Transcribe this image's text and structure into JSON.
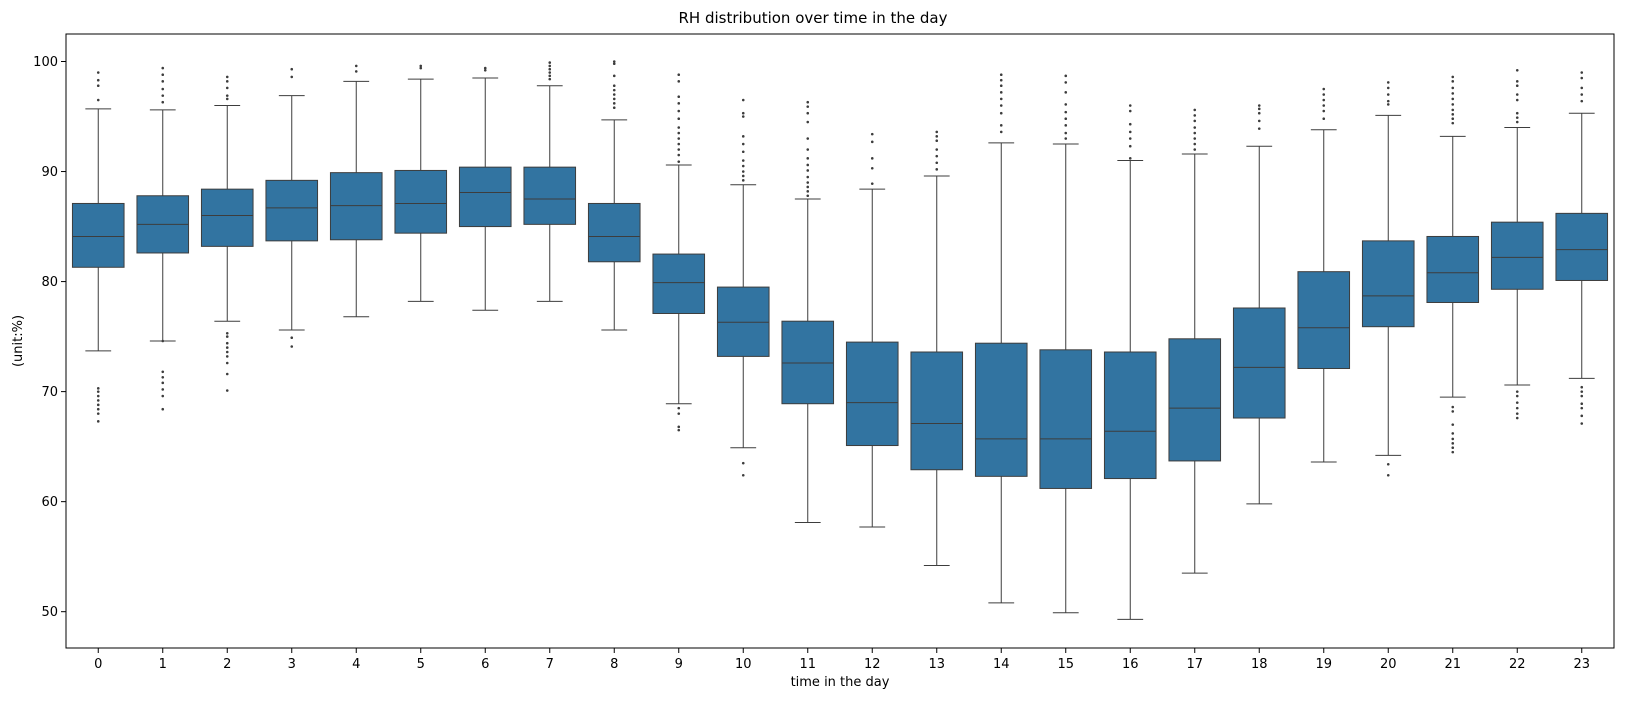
{
  "chart_data": {
    "type": "box",
    "title": "RH distribution over time in the day",
    "xlabel": "time in the day",
    "ylabel": "(unit:%)",
    "ylim": [
      46.7,
      102.5
    ],
    "yticks": [
      50,
      60,
      70,
      80,
      90,
      100
    ],
    "categories": [
      "0",
      "1",
      "2",
      "3",
      "4",
      "5",
      "6",
      "7",
      "8",
      "9",
      "10",
      "11",
      "12",
      "13",
      "14",
      "15",
      "16",
      "17",
      "18",
      "19",
      "20",
      "21",
      "22",
      "23"
    ],
    "box_color": "#3274a1",
    "edge_color": "#3d3d3d",
    "grid": false,
    "legend": "none",
    "boxes": [
      {
        "q1": 81.3,
        "median": 84.1,
        "q3": 87.1,
        "whisker_low": 73.7,
        "whisker_high": 95.7,
        "outliers": [
          67.3,
          68.0,
          68.4,
          68.8,
          69.2,
          69.6,
          70.0,
          70.3,
          96.5,
          97.8,
          98.3,
          99.0
        ]
      },
      {
        "q1": 82.6,
        "median": 85.2,
        "q3": 87.8,
        "whisker_low": 74.6,
        "whisker_high": 95.6,
        "outliers": [
          68.4,
          69.6,
          70.2,
          70.8,
          71.3,
          71.8,
          74.6,
          96.3,
          96.9,
          97.5,
          98.2,
          98.8,
          99.4
        ]
      },
      {
        "q1": 83.2,
        "median": 86.0,
        "q3": 88.4,
        "whisker_low": 76.4,
        "whisker_high": 96.0,
        "outliers": [
          70.1,
          71.6,
          72.6,
          73.2,
          73.6,
          74.0,
          74.4,
          75.0,
          75.3,
          96.6,
          96.9,
          97.6,
          98.2,
          98.6
        ]
      },
      {
        "q1": 83.7,
        "median": 86.7,
        "q3": 89.2,
        "whisker_low": 75.6,
        "whisker_high": 96.9,
        "outliers": [
          74.1,
          74.9,
          98.6,
          99.3
        ]
      },
      {
        "q1": 83.8,
        "median": 86.9,
        "q3": 89.9,
        "whisker_low": 76.8,
        "whisker_high": 98.2,
        "outliers": [
          99.1,
          99.6
        ]
      },
      {
        "q1": 84.4,
        "median": 87.1,
        "q3": 90.1,
        "whisker_low": 78.2,
        "whisker_high": 98.4,
        "outliers": [
          99.4,
          99.6
        ]
      },
      {
        "q1": 85.0,
        "median": 88.1,
        "q3": 90.4,
        "whisker_low": 77.4,
        "whisker_high": 98.5,
        "outliers": [
          99.2,
          99.4
        ]
      },
      {
        "q1": 85.2,
        "median": 87.5,
        "q3": 90.4,
        "whisker_low": 78.2,
        "whisker_high": 97.8,
        "outliers": [
          98.4,
          98.7,
          99.0,
          99.3,
          99.6,
          99.9
        ]
      },
      {
        "q1": 81.8,
        "median": 84.1,
        "q3": 87.1,
        "whisker_low": 75.6,
        "whisker_high": 94.7,
        "outliers": [
          95.8,
          96.2,
          96.6,
          97.0,
          97.4,
          97.8,
          98.7,
          99.8,
          100.0
        ]
      },
      {
        "q1": 77.1,
        "median": 79.9,
        "q3": 82.5,
        "whisker_low": 68.9,
        "whisker_high": 90.6,
        "outliers": [
          66.5,
          66.8,
          68.0,
          68.5,
          90.9,
          91.5,
          92.0,
          92.5,
          93.0,
          93.5,
          94.0,
          94.8,
          95.5,
          96.2,
          96.8,
          98.2,
          98.8
        ]
      },
      {
        "q1": 73.2,
        "median": 76.3,
        "q3": 79.5,
        "whisker_low": 64.9,
        "whisker_high": 88.8,
        "outliers": [
          62.4,
          63.5,
          89.2,
          89.6,
          90.0,
          90.5,
          91.0,
          91.8,
          92.5,
          93.2,
          95.0,
          95.3,
          96.5
        ]
      },
      {
        "q1": 68.9,
        "median": 72.6,
        "q3": 76.4,
        "whisker_low": 58.1,
        "whisker_high": 87.5,
        "outliers": [
          87.8,
          88.2,
          88.6,
          89.0,
          89.5,
          90.1,
          90.6,
          91.2,
          92.0,
          93.0,
          94.5,
          95.3,
          95.9,
          96.3
        ]
      },
      {
        "q1": 65.1,
        "median": 69.0,
        "q3": 74.5,
        "whisker_low": 57.7,
        "whisker_high": 88.4,
        "outliers": [
          88.9,
          90.3,
          91.2,
          92.7,
          93.4
        ]
      },
      {
        "q1": 62.9,
        "median": 67.1,
        "q3": 73.6,
        "whisker_low": 54.2,
        "whisker_high": 89.6,
        "outliers": [
          90.2,
          90.8,
          91.4,
          92.0,
          92.8,
          93.2,
          93.6
        ]
      },
      {
        "q1": 62.3,
        "median": 65.7,
        "q3": 74.4,
        "whisker_low": 50.8,
        "whisker_high": 92.6,
        "outliers": [
          93.6,
          94.2,
          95.3,
          96.0,
          96.6,
          97.2,
          97.8,
          98.3,
          98.8
        ]
      },
      {
        "q1": 61.2,
        "median": 65.7,
        "q3": 73.8,
        "whisker_low": 49.9,
        "whisker_high": 92.5,
        "outliers": [
          93.0,
          93.5,
          94.2,
          94.8,
          95.4,
          96.1,
          97.2,
          98.1,
          98.7
        ]
      },
      {
        "q1": 62.1,
        "median": 66.4,
        "q3": 73.6,
        "whisker_low": 49.3,
        "whisker_high": 91.0,
        "outliers": [
          91.2,
          92.3,
          93.0,
          93.6,
          94.3,
          95.5,
          96.0
        ]
      },
      {
        "q1": 63.7,
        "median": 68.5,
        "q3": 74.8,
        "whisker_low": 53.5,
        "whisker_high": 91.6,
        "outliers": [
          92.0,
          92.5,
          93.0,
          93.5,
          94.0,
          94.6,
          95.1,
          95.6
        ]
      },
      {
        "q1": 67.6,
        "median": 72.2,
        "q3": 77.6,
        "whisker_low": 59.8,
        "whisker_high": 92.3,
        "outliers": [
          93.9,
          94.6,
          95.3,
          95.7,
          96.0
        ]
      },
      {
        "q1": 72.1,
        "median": 75.8,
        "q3": 80.9,
        "whisker_low": 63.6,
        "whisker_high": 93.8,
        "outliers": [
          94.8,
          95.5,
          96.0,
          96.5,
          97.0,
          97.5
        ]
      },
      {
        "q1": 75.9,
        "median": 78.7,
        "q3": 83.7,
        "whisker_low": 64.2,
        "whisker_high": 95.1,
        "outliers": [
          62.4,
          63.4,
          96.1,
          96.4,
          97.0,
          97.6,
          98.1
        ]
      },
      {
        "q1": 78.1,
        "median": 80.8,
        "q3": 84.1,
        "whisker_low": 69.5,
        "whisker_high": 93.2,
        "outliers": [
          64.5,
          64.9,
          65.3,
          65.7,
          66.2,
          67.0,
          68.2,
          68.6,
          94.4,
          94.8,
          95.2,
          95.6,
          96.1,
          96.6,
          97.1,
          97.6,
          98.2,
          98.6
        ]
      },
      {
        "q1": 79.3,
        "median": 82.2,
        "q3": 85.4,
        "whisker_low": 70.6,
        "whisker_high": 94.0,
        "outliers": [
          67.6,
          68.0,
          68.5,
          69.0,
          69.6,
          70.0,
          94.5,
          94.9,
          95.3,
          96.5,
          97.0,
          97.8,
          98.2,
          99.2
        ]
      },
      {
        "q1": 80.1,
        "median": 82.9,
        "q3": 86.2,
        "whisker_low": 71.2,
        "whisker_high": 95.3,
        "outliers": [
          67.1,
          67.8,
          68.5,
          68.9,
          69.6,
          70.0,
          70.4,
          96.4,
          97.0,
          97.6,
          98.5,
          99.0
        ]
      }
    ]
  }
}
